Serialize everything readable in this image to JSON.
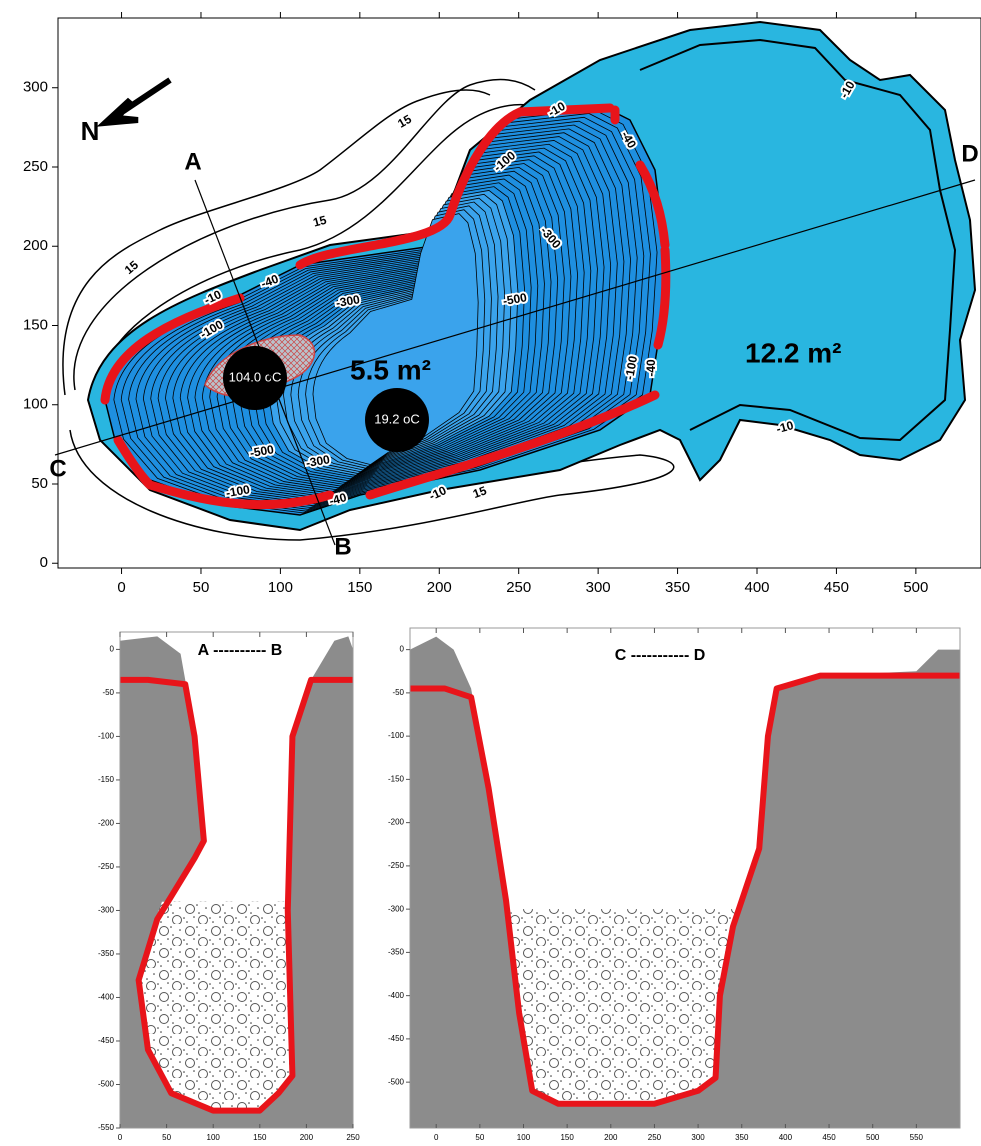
{
  "chart_data": [
    {
      "type": "map",
      "xlim": [
        -40,
        541
      ],
      "ylim": [
        -3,
        344
      ],
      "xticks": [
        0,
        50,
        100,
        150,
        200,
        250,
        300,
        350,
        400,
        450,
        500
      ],
      "yticks": [
        0,
        50,
        100,
        150,
        200,
        250,
        300
      ],
      "labels": {
        "north": "N",
        "a": "A",
        "b": "B",
        "c": "C",
        "d": "D",
        "area_left": "5.5 m²",
        "area_right": "12.2 m²",
        "temp_1": "104.0 oC",
        "temp_2": "19.2 oC"
      },
      "contour_labels": [
        "15",
        "15",
        "15",
        "15",
        "-10",
        "-10",
        "-10",
        "-10",
        "-10",
        "-40",
        "-40",
        "-40",
        "-40",
        "-100",
        "-100",
        "-100",
        "-100",
        "-300",
        "-300",
        "-300",
        "-500",
        "-500"
      ]
    },
    {
      "type": "profile",
      "title": "A ---------- B",
      "xlim": [
        0,
        250
      ],
      "ylim": [
        -550,
        20
      ],
      "xticks": [
        0,
        50,
        100,
        150,
        200,
        250
      ],
      "yticks": [
        0,
        -50,
        -100,
        -150,
        -200,
        -250,
        -300,
        -350,
        -400,
        -450,
        -500,
        -550
      ]
    },
    {
      "type": "profile",
      "title": "C ----------- D",
      "xlim": [
        -30,
        600
      ],
      "ylim": [
        -553,
        25
      ],
      "xticks": [
        0,
        50,
        100,
        150,
        200,
        250,
        300,
        350,
        400,
        450,
        500,
        550
      ],
      "yticks": [
        0,
        -50,
        -100,
        -150,
        -200,
        -250,
        -300,
        -350,
        -400,
        -450,
        -500
      ]
    }
  ]
}
